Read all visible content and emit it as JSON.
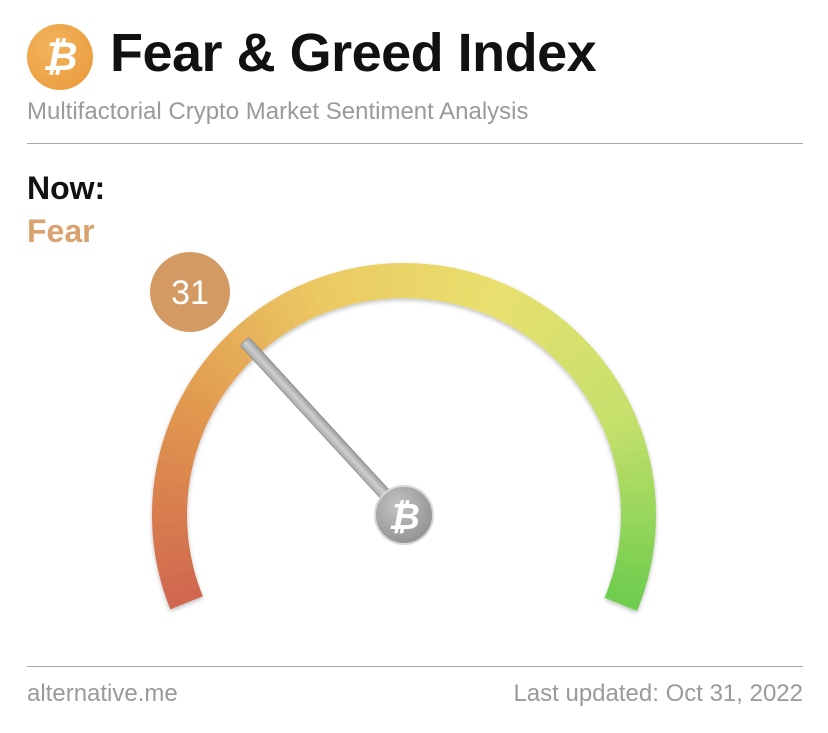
{
  "header": {
    "logo_glyph": "₿",
    "title": "Fear & Greed Index",
    "subtitle": "Multifactorial Crypto Market Sentiment Analysis"
  },
  "now": {
    "label": "Now:",
    "classification": "Fear",
    "classification_color": "#d9a26e"
  },
  "chart_data": {
    "type": "gauge",
    "value": 31,
    "value_label": "31",
    "range": [
      0,
      100
    ],
    "classification": "Fear",
    "badge_color": "#d49a63",
    "gradient_colors": [
      "#d0674f",
      "#e0954f",
      "#ebc862",
      "#e9e06e",
      "#c6e06c",
      "#6fcd4e"
    ],
    "hub_glyph": "₿"
  },
  "footer": {
    "source": "alternative.me",
    "last_updated": "Last updated: Oct 31, 2022"
  }
}
